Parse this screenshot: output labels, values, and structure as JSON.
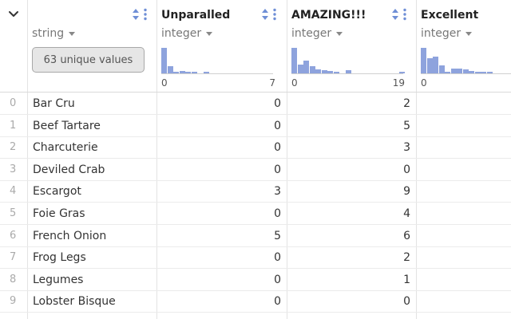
{
  "columns": [
    {
      "title": "",
      "type": "string",
      "unique_label": "63 unique values"
    },
    {
      "title": "Unparalled",
      "type": "integer",
      "hist_min": "0",
      "hist_max": "7",
      "hist": [
        1.0,
        0.27,
        0.06,
        0.09,
        0.06,
        0.06,
        0.0,
        0.03
      ]
    },
    {
      "title": "AMAZING!!!",
      "type": "integer",
      "hist_min": "0",
      "hist_max": "19",
      "hist": [
        1.0,
        0.34,
        0.5,
        0.28,
        0.16,
        0.12,
        0.09,
        0.06,
        0.0,
        0.12,
        0.0,
        0.0,
        0.0,
        0.0,
        0.0,
        0.0,
        0.0,
        0.0,
        0.06
      ]
    },
    {
      "title": "Excellent",
      "type": "integer",
      "hist_min": "0",
      "hist_max": "",
      "hist": [
        1.0,
        0.6,
        0.66,
        0.3,
        0.03,
        0.2,
        0.2,
        0.16,
        0.09,
        0.06,
        0.06,
        0.03
      ]
    }
  ],
  "rows": [
    {
      "index": "0",
      "name": "Bar Cru",
      "unparalled": "0",
      "amazing": "2"
    },
    {
      "index": "1",
      "name": "Beef Tartare",
      "unparalled": "0",
      "amazing": "5"
    },
    {
      "index": "2",
      "name": "Charcuterie",
      "unparalled": "0",
      "amazing": "3"
    },
    {
      "index": "3",
      "name": "Deviled Crab",
      "unparalled": "0",
      "amazing": "0"
    },
    {
      "index": "4",
      "name": "Escargot",
      "unparalled": "3",
      "amazing": "9"
    },
    {
      "index": "5",
      "name": "Foie Gras",
      "unparalled": "0",
      "amazing": "4"
    },
    {
      "index": "6",
      "name": "French Onion",
      "unparalled": "5",
      "amazing": "6"
    },
    {
      "index": "7",
      "name": "Frog Legs",
      "unparalled": "0",
      "amazing": "2"
    },
    {
      "index": "8",
      "name": "Legumes",
      "unparalled": "0",
      "amazing": "1"
    },
    {
      "index": "9",
      "name": "Lobster Bisque",
      "unparalled": "0",
      "amazing": "0"
    }
  ],
  "colors": {
    "histogram_bar": "#8ea3dd",
    "icon_accent": "#6f8fd6",
    "grid_line": "#e3e3e3"
  }
}
